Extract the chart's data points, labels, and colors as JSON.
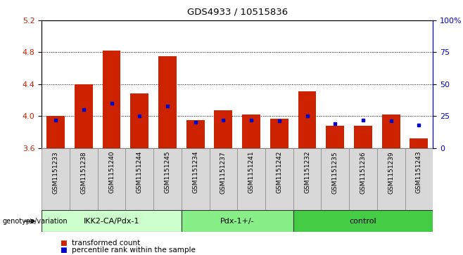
{
  "title": "GDS4933 / 10515836",
  "samples": [
    "GSM1151233",
    "GSM1151238",
    "GSM1151240",
    "GSM1151244",
    "GSM1151245",
    "GSM1151234",
    "GSM1151237",
    "GSM1151241",
    "GSM1151242",
    "GSM1151232",
    "GSM1151235",
    "GSM1151236",
    "GSM1151239",
    "GSM1151243"
  ],
  "red_values": [
    4.0,
    4.4,
    4.82,
    4.28,
    4.75,
    3.95,
    4.07,
    4.02,
    3.97,
    4.31,
    3.88,
    3.88,
    4.02,
    3.72
  ],
  "blue_values": [
    22,
    30,
    35,
    25,
    33,
    20,
    22,
    22,
    21,
    25,
    19,
    22,
    21,
    18
  ],
  "ylim_left": [
    3.6,
    5.2
  ],
  "ylim_right": [
    0,
    100
  ],
  "yticks_left": [
    3.6,
    4.0,
    4.4,
    4.8,
    5.2
  ],
  "yticks_right": [
    0,
    25,
    50,
    75,
    100
  ],
  "bar_color": "#cc2200",
  "dot_color": "#0000cc",
  "groups": [
    {
      "label": "IKK2-CA/Pdx-1",
      "start": 0,
      "end": 5,
      "color": "#ccffcc"
    },
    {
      "label": "Pdx-1+/-",
      "start": 5,
      "end": 9,
      "color": "#88ee88"
    },
    {
      "label": "control",
      "start": 9,
      "end": 14,
      "color": "#44cc44"
    }
  ],
  "legend_red": "transformed count",
  "legend_blue": "percentile rank within the sample",
  "genotype_label": "genotype/variation",
  "background_color": "#ffffff",
  "bar_bottom": 3.6,
  "bar_width": 0.65
}
